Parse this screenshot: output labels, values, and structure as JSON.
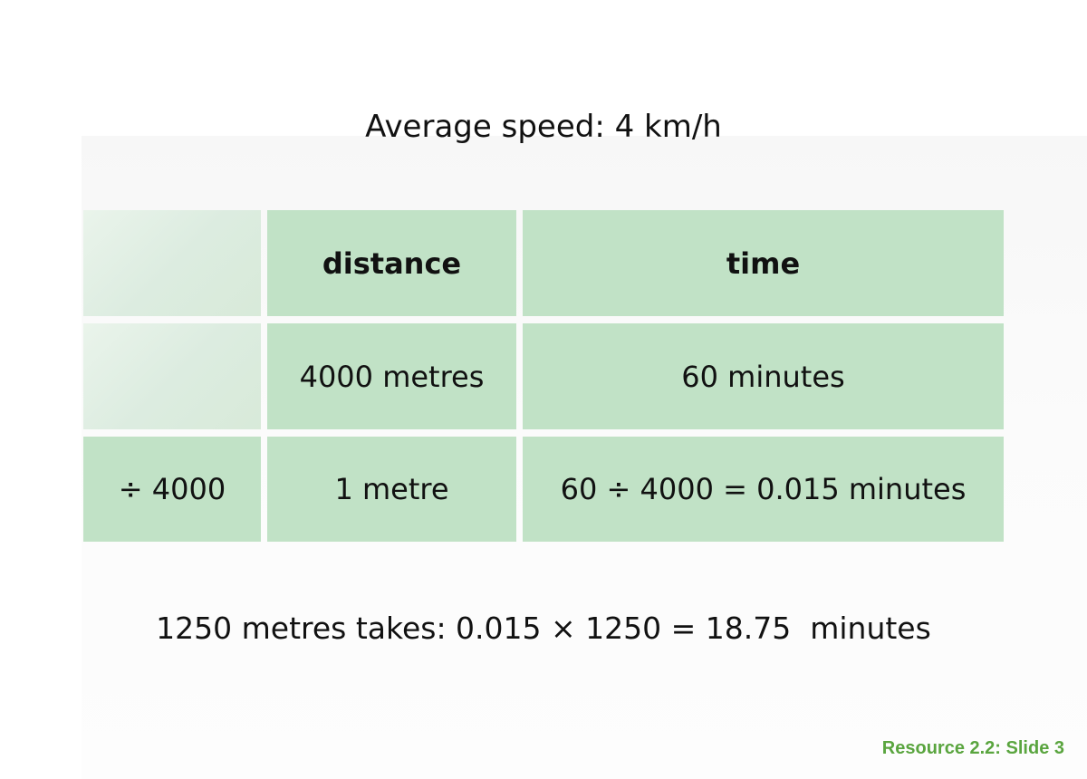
{
  "title": "Average speed: 4 km/h",
  "table": {
    "headers": [
      "",
      "distance",
      "time"
    ],
    "rows": [
      [
        "",
        "4000 metres",
        "60 minutes"
      ],
      [
        "÷ 4000",
        "1 metre",
        "60 ÷ 4000 = 0.015 minutes"
      ]
    ]
  },
  "result": "1250 metres takes: 0.015 × 1250 = 18.75  minutes",
  "footer": "Resource 2.2: Slide 3",
  "colors": {
    "cell_fill": "#c1e2c6",
    "blank_cell_fill": "#dcece0",
    "footer_text": "#5aa53f"
  }
}
